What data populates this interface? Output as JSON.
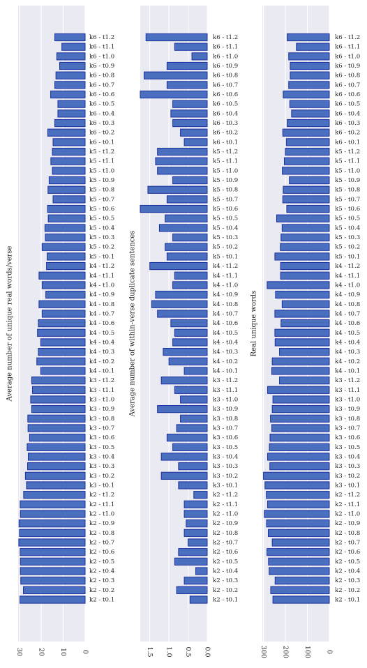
{
  "chart_data": [
    {
      "type": "bar",
      "orientation": "horizontal",
      "ylabel": "Average number of unique real words/verse",
      "xlim": [
        0,
        30.5
      ],
      "xticks": [
        0,
        10,
        20,
        30
      ],
      "tick_labels": [
        "0",
        "10",
        "20",
        "30"
      ],
      "grid": true,
      "categories": [
        "k6 - t1.2",
        "k6 - t1.1",
        "k6 - t1.0",
        "k6 - t0.9",
        "k6 - t0.8",
        "k6 - t0.7",
        "k6 - t0.6",
        "k6 - t0.5",
        "k6 - t0.4",
        "k6 - t0.3",
        "k6 - t0.2",
        "k6 - t0.1",
        "k5 - t1.2",
        "k5 - t1.1",
        "k5 - t1.0",
        "k5 - t0.9",
        "k5 - t0.8",
        "k5 - t0.7",
        "k5 - t0.6",
        "k5 - t0.5",
        "k5 - t0.4",
        "k5 - t0.3",
        "k5 - t0.2",
        "k5 - t0.1",
        "k4 - t1.2",
        "k4 - t1.1",
        "k4 - t1.0",
        "k4 - t0.9",
        "k4 - t0.8",
        "k4 - t0.7",
        "k4 - t0.6",
        "k4 - t0.5",
        "k4 - t0.4",
        "k4 - t0.3",
        "k4 - t0.2",
        "k4 - t0.1",
        "k3 - t1.2",
        "k3 - t1.1",
        "k3 - t1.0",
        "k3 - t0.9",
        "k3 - t0.8",
        "k3 - t0.7",
        "k3 - t0.6",
        "k3 - t0.5",
        "k3 - t0.4",
        "k3 - t0.3",
        "k3 - t0.2",
        "k3 - t0.1",
        "k2 - t1.2",
        "k2 - t1.1",
        "k2 - t1.0",
        "k2 - t0.9",
        "k2 - t0.8",
        "k2 - t0.7",
        "k2 - t0.6",
        "k2 - t0.5",
        "k2 - t0.4",
        "k2 - t0.3",
        "k2 - t0.2",
        "k2 - t0.1"
      ],
      "values": [
        13.8,
        10.6,
        12.9,
        11.6,
        13.3,
        13.8,
        15.7,
        12.4,
        12.4,
        13.8,
        17.0,
        14.6,
        14.9,
        15.6,
        14.9,
        16.4,
        16.9,
        14.6,
        17.1,
        16.8,
        18.3,
        18.1,
        19.6,
        17.3,
        17.6,
        21.0,
        19.6,
        17.9,
        21.0,
        19.6,
        21.3,
        21.7,
        20.2,
        21.3,
        22.0,
        20.2,
        24.3,
        24.0,
        24.8,
        24.3,
        26.1,
        26.0,
        25.3,
        26.4,
        25.9,
        26.2,
        27.2,
        26.7,
        28.0,
        29.6,
        29.5,
        30.1,
        29.9,
        30.2,
        29.6,
        29.5,
        29.5,
        29.3,
        28.1,
        29.7
      ]
    },
    {
      "type": "bar",
      "orientation": "horizontal",
      "ylabel": "Average number of within-verse duplicate sentences",
      "xlim": [
        0,
        1.75
      ],
      "xticks": [
        0,
        0.5,
        1.0,
        1.5
      ],
      "tick_labels": [
        "0.0",
        "0.5",
        "1.0",
        "1.5"
      ],
      "grid": true,
      "categories": [
        "k6 - t1.2",
        "k6 - t1.1",
        "k6 - t1.0",
        "k6 - t0.9",
        "k6 - t0.8",
        "k6 - t0.7",
        "k6 - t0.6",
        "k6 - t0.5",
        "k6 - t0.4",
        "k6 - t0.3",
        "k6 - t0.2",
        "k6 - t0.1",
        "k5 - t1.2",
        "k5 - t1.1",
        "k5 - t1.0",
        "k5 - t0.9",
        "k5 - t0.8",
        "k5 - t0.7",
        "k5 - t0.6",
        "k5 - t0.5",
        "k5 - t0.4",
        "k5 - t0.3",
        "k5 - t0.2",
        "k5 - t0.1",
        "k4 - t1.2",
        "k4 - t1.1",
        "k4 - t1.0",
        "k4 - t0.9",
        "k4 - t0.8",
        "k4 - t0.7",
        "k4 - t0.6",
        "k4 - t0.5",
        "k4 - t0.4",
        "k4 - t0.3",
        "k4 - t0.2",
        "k4 - t0.1",
        "k3 - t1.2",
        "k3 - t1.1",
        "k3 - t1.0",
        "k3 - t0.9",
        "k3 - t0.8",
        "k3 - t0.7",
        "k3 - t0.6",
        "k3 - t0.5",
        "k3 - t0.4",
        "k3 - t0.3",
        "k3 - t0.2",
        "k3 - t0.1",
        "k2 - t1.2",
        "k2 - t1.1",
        "k2 - t1.0",
        "k2 - t0.9",
        "k2 - t0.8",
        "k2 - t0.7",
        "k2 - t0.6",
        "k2 - t0.5",
        "k2 - t0.4",
        "k2 - t0.3",
        "k2 - t0.2",
        "k2 - t0.1"
      ],
      "values": [
        1.6,
        0.85,
        0.4,
        1.05,
        1.65,
        1.05,
        1.75,
        0.9,
        0.95,
        0.9,
        0.7,
        0.6,
        1.3,
        1.35,
        1.3,
        0.9,
        1.55,
        1.05,
        1.75,
        1.1,
        1.25,
        0.9,
        1.1,
        1.05,
        1.5,
        0.85,
        0.9,
        1.35,
        1.45,
        1.3,
        0.95,
        0.85,
        0.9,
        1.15,
        1.0,
        0.6,
        1.2,
        0.85,
        0.7,
        1.3,
        0.7,
        0.8,
        1.05,
        0.9,
        1.2,
        0.75,
        1.2,
        0.75,
        0.35,
        0.6,
        0.6,
        0.55,
        0.6,
        0.5,
        0.75,
        0.85,
        0.3,
        0.6,
        0.8,
        0.45
      ]
    },
    {
      "type": "bar",
      "orientation": "horizontal",
      "ylabel": "Real unique words",
      "xlim": [
        0,
        305
      ],
      "xticks": [
        0,
        100,
        200,
        300
      ],
      "tick_labels": [
        "0",
        "100",
        "200",
        "300"
      ],
      "grid": true,
      "categories": [
        "k6 - t1.2",
        "k6 - t1.1",
        "k6 - t1.0",
        "k6 - t0.9",
        "k6 - t0.8",
        "k6 - t0.7",
        "k6 - t0.6",
        "k6 - t0.5",
        "k6 - t0.4",
        "k6 - t0.3",
        "k6 - t0.2",
        "k6 - t0.1",
        "k5 - t1.2",
        "k5 - t1.1",
        "k5 - t1.0",
        "k5 - t0.9",
        "k5 - t0.8",
        "k5 - t0.7",
        "k5 - t0.6",
        "k5 - t0.5",
        "k5 - t0.4",
        "k5 - t0.3",
        "k5 - t0.2",
        "k5 - t0.1",
        "k4 - t1.2",
        "k4 - t1.1",
        "k4 - t1.0",
        "k4 - t0.9",
        "k4 - t0.8",
        "k4 - t0.7",
        "k4 - t0.6",
        "k4 - t0.5",
        "k4 - t0.4",
        "k4 - t0.3",
        "k4 - t0.2",
        "k4 - t0.1",
        "k3 - t1.2",
        "k3 - t1.1",
        "k3 - t1.0",
        "k3 - t0.9",
        "k3 - t0.8",
        "k3 - t0.7",
        "k3 - t0.6",
        "k3 - t0.5",
        "k3 - t0.4",
        "k3 - t0.3",
        "k3 - t0.2",
        "k3 - t0.1",
        "k2 - t1.2",
        "k2 - t1.1",
        "k2 - t1.0",
        "k2 - t0.9",
        "k2 - t0.8",
        "k2 - t0.7",
        "k2 - t0.6",
        "k2 - t0.5",
        "k2 - t0.4",
        "k2 - t0.3",
        "k2 - t0.2",
        "k2 - t0.1"
      ],
      "values": [
        192,
        150,
        185,
        178,
        178,
        185,
        210,
        180,
        172,
        192,
        212,
        196,
        200,
        205,
        214,
        182,
        210,
        212,
        194,
        240,
        215,
        220,
        223,
        248,
        222,
        222,
        283,
        245,
        215,
        248,
        220,
        248,
        247,
        227,
        260,
        262,
        227,
        281,
        257,
        260,
        268,
        262,
        270,
        273,
        281,
        271,
        300,
        293,
        287,
        281,
        296,
        286,
        278,
        260,
        284,
        277,
        274,
        247,
        267,
        257
      ]
    }
  ]
}
